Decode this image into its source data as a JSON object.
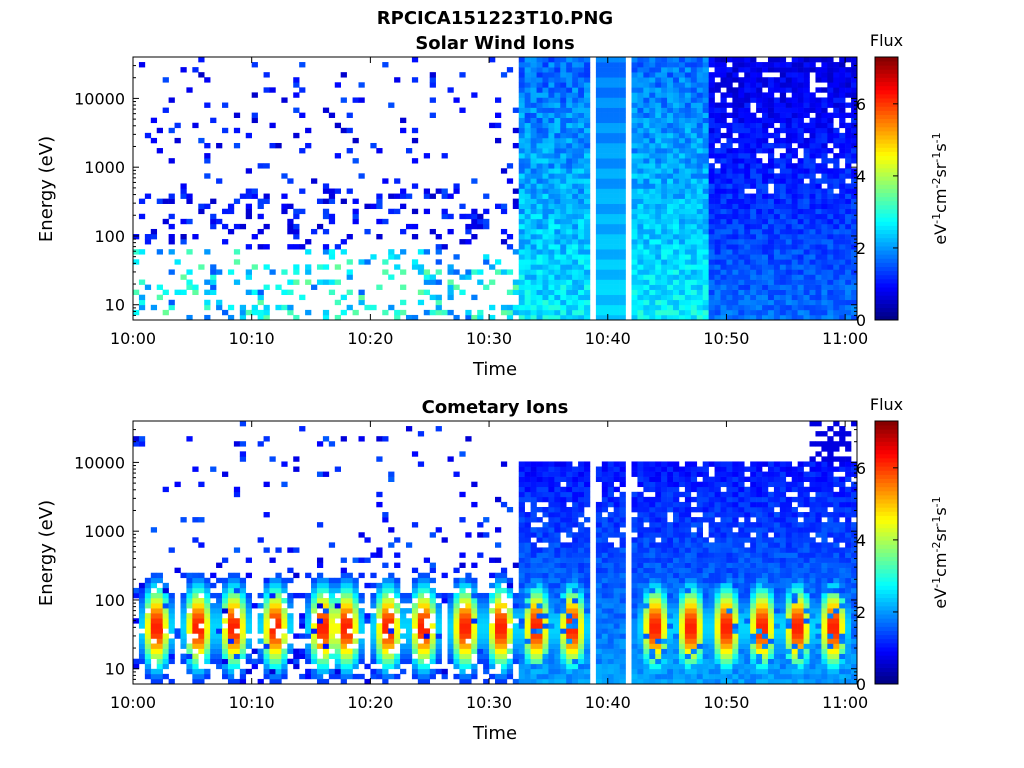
{
  "figure_title": "RPCICA151223T10.PNG",
  "chart_data": [
    {
      "type": "heatmap",
      "title": "Solar Wind Ions",
      "xlabel": "Time",
      "ylabel": "Energy (eV)",
      "x_range": [
        "10:00",
        "11:01"
      ],
      "x_ticks": [
        "10:00",
        "10:10",
        "10:20",
        "10:30",
        "10:40",
        "10:50",
        "11:00"
      ],
      "y_scale": "log",
      "y_range": [
        6,
        40000
      ],
      "y_ticks": [
        "10",
        "100",
        "1000",
        "10000"
      ],
      "colorbar_title": "Flux",
      "colorbar_unit": "eV-1cm-2sr-1s-1",
      "colorbar_range": [
        0,
        7.3
      ],
      "colorbar_ticks": [
        "0",
        "2",
        "4",
        "6"
      ],
      "colormap": "jet",
      "regions": [
        {
          "time": "10:00-10:32",
          "description": "sparse",
          "low_energy_flux": 2.5
        },
        {
          "time": "10:32-10:38",
          "description": "dense",
          "flux": 2.0
        },
        {
          "time": "10:38-10:41",
          "description": "banded",
          "flux": 2.2
        },
        {
          "time": "10:42-10:48",
          "description": "dense",
          "flux": 2.0
        },
        {
          "time": "10:48-11:01",
          "description": "dense-low",
          "flux": 1.2
        }
      ]
    },
    {
      "type": "heatmap",
      "title": "Cometary Ions",
      "xlabel": "Time",
      "ylabel": "Energy (eV)",
      "x_range": [
        "10:00",
        "11:01"
      ],
      "x_ticks": [
        "10:00",
        "10:10",
        "10:20",
        "10:30",
        "10:40",
        "10:50",
        "11:00"
      ],
      "y_scale": "log",
      "y_range": [
        6,
        40000
      ],
      "y_ticks": [
        "10",
        "100",
        "1000",
        "10000"
      ],
      "colorbar_title": "Flux",
      "colorbar_unit": "eV-1cm-2sr-1s-1",
      "colorbar_range": [
        0,
        7.3
      ],
      "colorbar_ticks": [
        "0",
        "2",
        "4",
        "6"
      ],
      "colormap": "jet",
      "burst_times_min": [
        2,
        5.5,
        8.5,
        12,
        16,
        18,
        21.5,
        24.5,
        28,
        31,
        34,
        37,
        44,
        47,
        50,
        53,
        56,
        59
      ],
      "burst_peak_energy_eV": 40,
      "burst_peak_flux": 6.5
    }
  ]
}
